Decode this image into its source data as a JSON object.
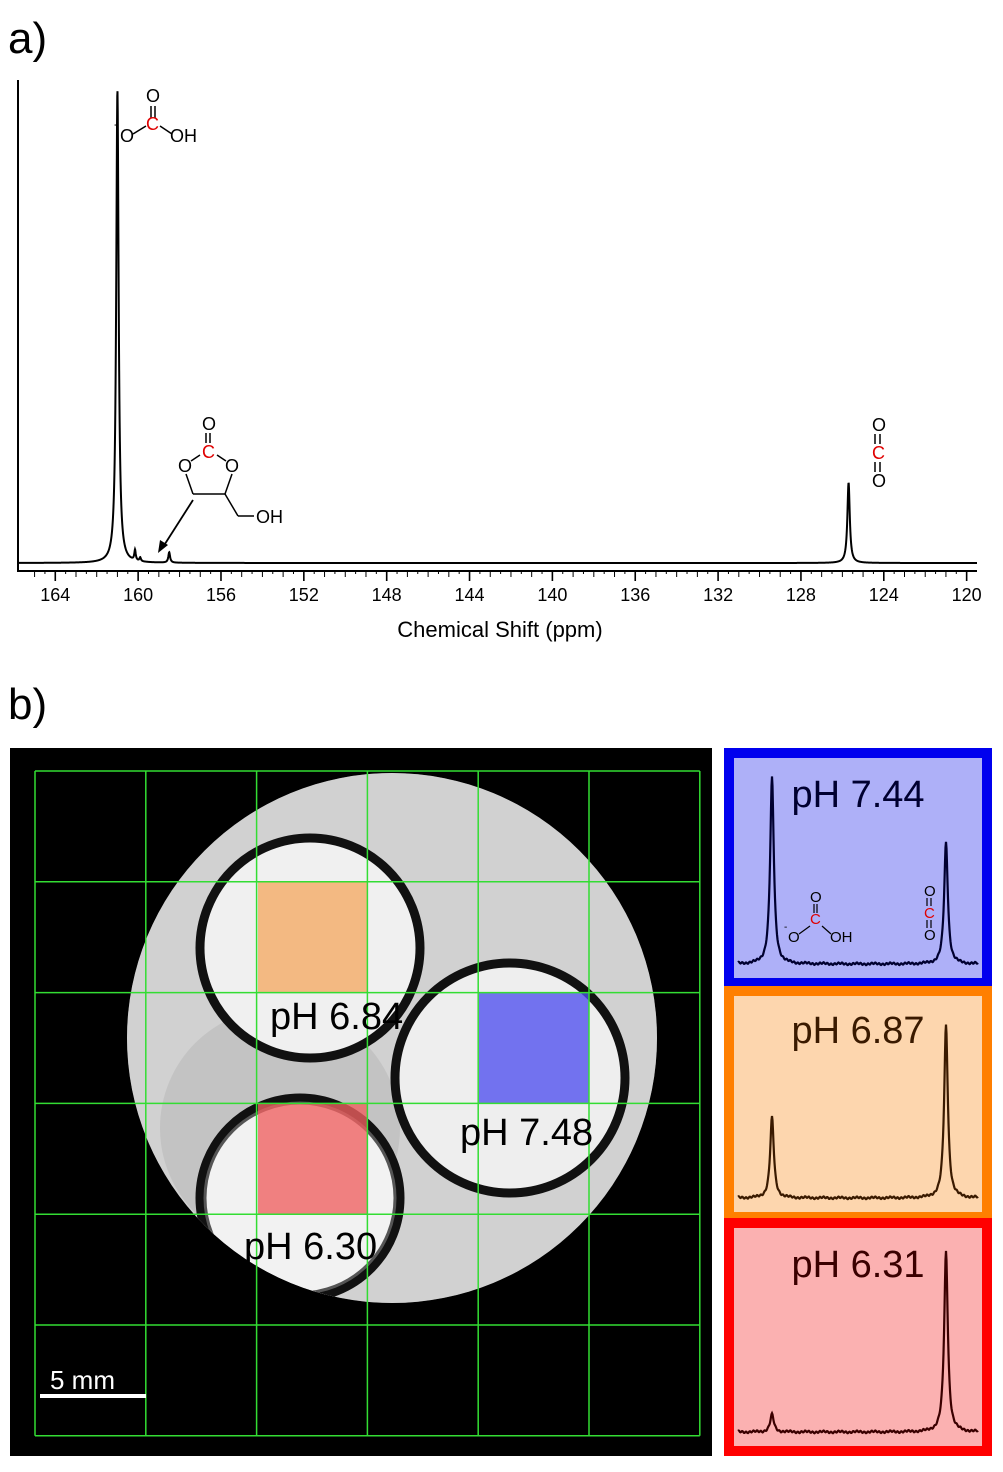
{
  "panel_a": {
    "label": "a)",
    "chart_data": {
      "type": "line",
      "title": "",
      "xlabel": "Chemical Shift (ppm)",
      "ylabel": "",
      "xlim": [
        165.8,
        119.5
      ],
      "ylim": [
        0,
        1.0
      ],
      "x_ticks": [
        164,
        160,
        156,
        152,
        148,
        144,
        140,
        136,
        132,
        128,
        124,
        120
      ],
      "peaks": [
        {
          "name": "bicarbonate",
          "ppm": 161.0,
          "height": 1.0,
          "width": 0.07
        },
        {
          "name": "minor-1",
          "ppm": 160.15,
          "height": 0.022,
          "width": 0.04
        },
        {
          "name": "minor-2",
          "ppm": 159.9,
          "height": 0.008,
          "width": 0.04
        },
        {
          "name": "glycerol-carbonate",
          "ppm": 158.5,
          "height": 0.022,
          "width": 0.05
        },
        {
          "name": "co2",
          "ppm": 125.7,
          "height": 0.17,
          "width": 0.07
        }
      ],
      "annotations": [
        {
          "name": "bicarbonate-structure",
          "atoms": {
            "top_o": "O",
            "c": "C",
            "left_o": "O",
            "charge": "-",
            "oh": "OH"
          }
        },
        {
          "name": "cyclic-carbonate-structure",
          "atoms": {
            "top_o": "O",
            "c": "C",
            "ring_o1": "O",
            "ring_o2": "O",
            "oh": "OH"
          }
        },
        {
          "name": "co2-structure",
          "atoms": {
            "o1": "O",
            "c": "C",
            "o2": "O"
          }
        }
      ]
    }
  },
  "panel_b": {
    "label": "b)",
    "rois": [
      {
        "label": "pH 6.84",
        "color": "#f4a458"
      },
      {
        "label": "pH 7.48",
        "color": "#5050f0"
      },
      {
        "label": "pH 6.30",
        "color": "#f06060"
      }
    ],
    "scale_bar": "5 mm",
    "spectra": [
      {
        "label": "pH 7.44",
        "border": "#0000ee",
        "fill": "#aeb0f8",
        "line": "#000030",
        "bicarb_height": 0.95,
        "co2_height": 0.62,
        "structures": {
          "bicarb": {
            "top_o": "O",
            "c": "C",
            "left_o": "O",
            "charge": "-",
            "oh": "OH"
          },
          "co2": {
            "o1": "O",
            "c": "C",
            "o2": "O"
          }
        }
      },
      {
        "label": "pH 6.87",
        "border": "#ff7f00",
        "fill": "#fdd6ae",
        "line": "#3a1a00",
        "bicarb_height": 0.42,
        "co2_height": 0.9
      },
      {
        "label": "pH 6.31",
        "border": "#ff0000",
        "fill": "#fbb1b1",
        "line": "#3a0000",
        "bicarb_height": 0.09,
        "co2_height": 0.93
      }
    ]
  }
}
